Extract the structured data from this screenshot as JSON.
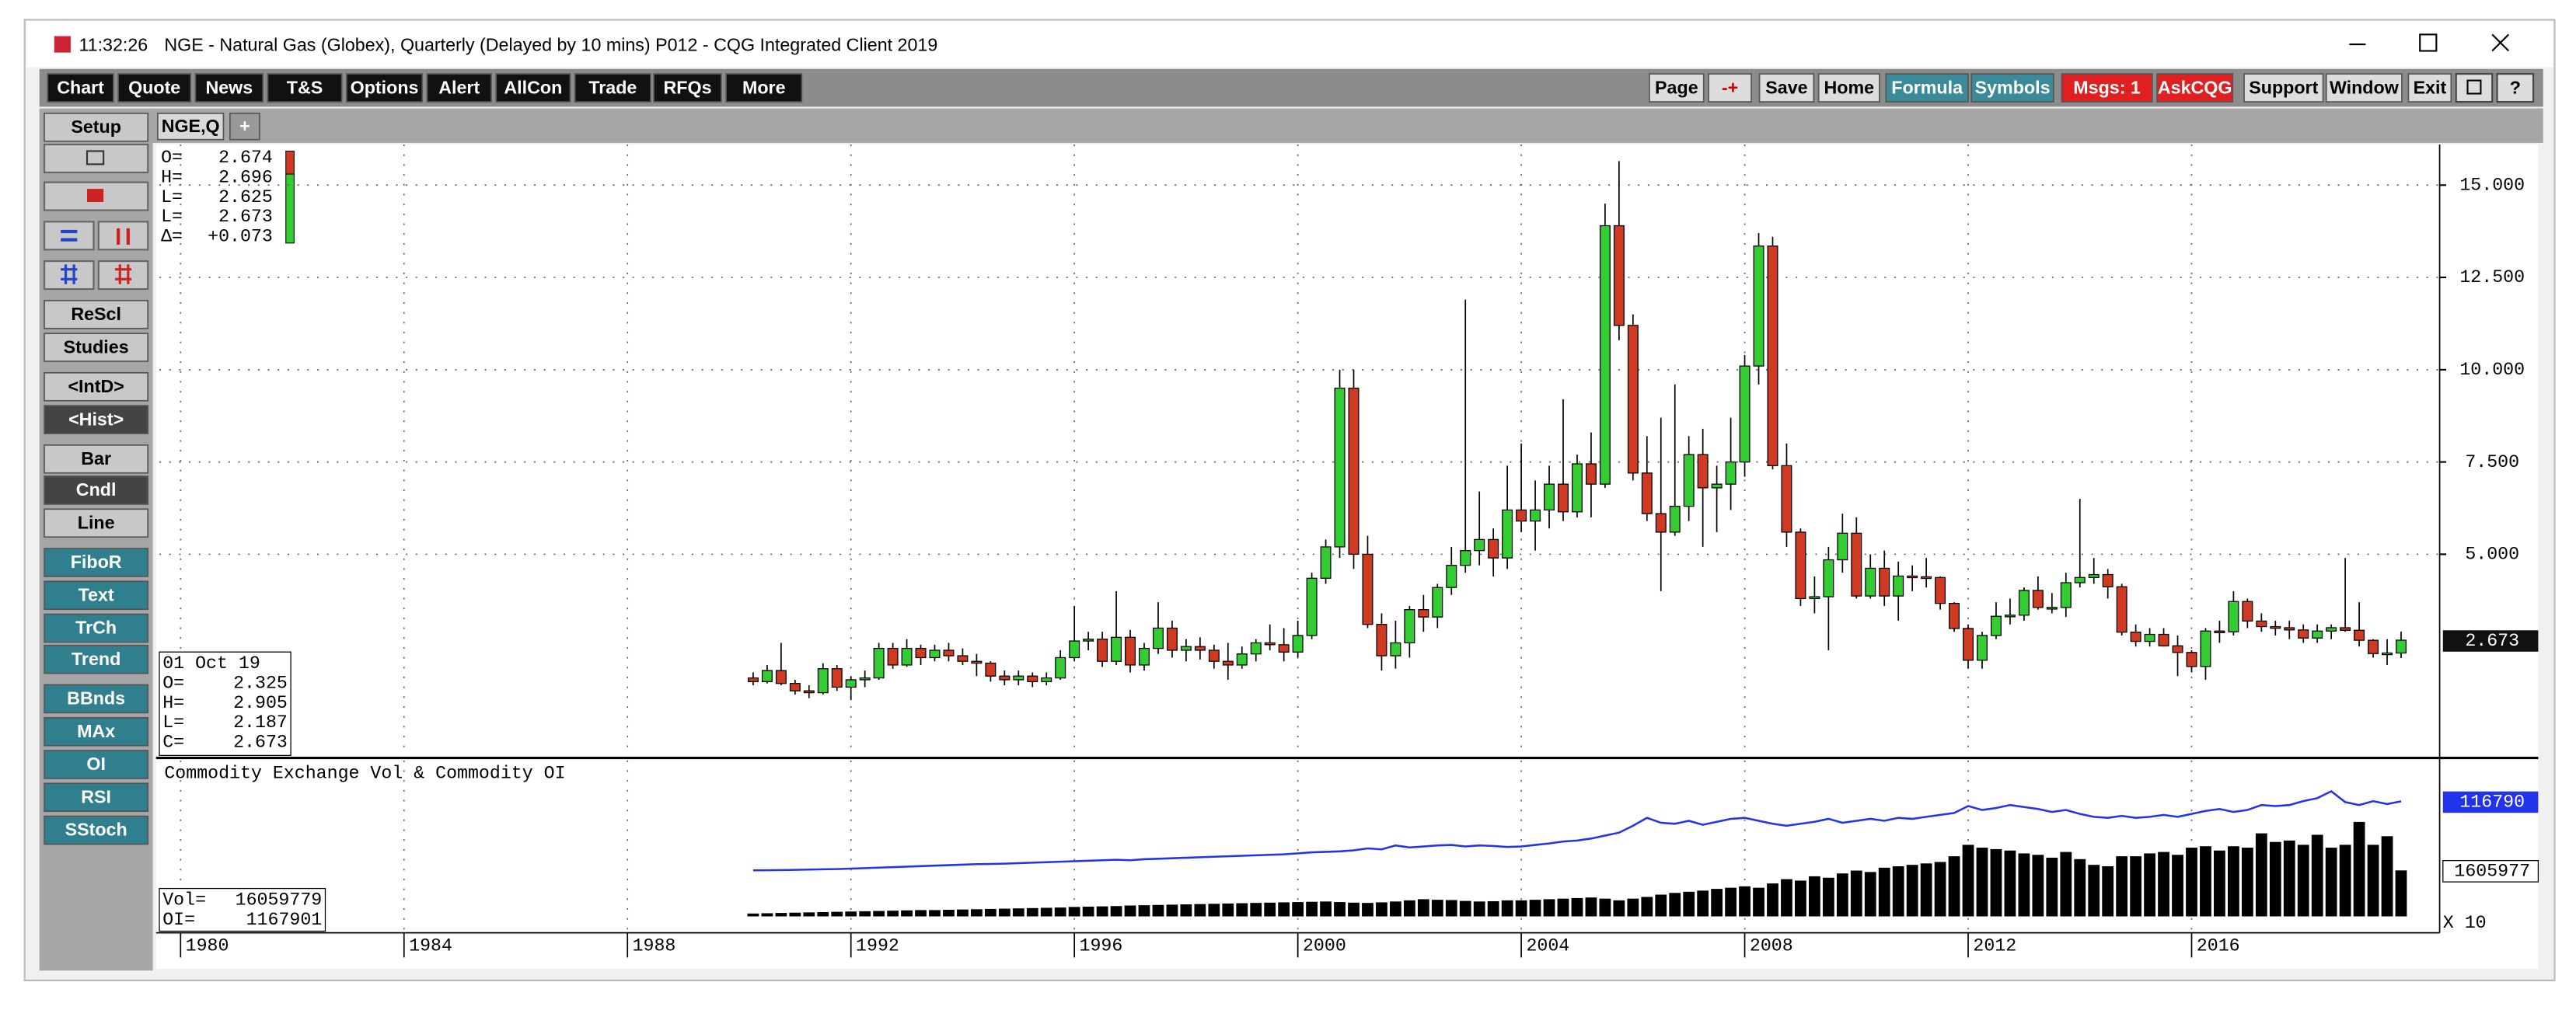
{
  "window": {
    "time": "11:32:26",
    "title": "NGE - Natural Gas (Globex), Quarterly (Delayed by 10 mins)   P012 - CQG Integrated Client 2019"
  },
  "toolbar_left": [
    "Chart",
    "Quote",
    "News",
    "T&S",
    "Options",
    "Alert",
    "AllCon",
    "Trade",
    "RFQs",
    "More"
  ],
  "toolbar_right": [
    "Page",
    "-+",
    "Save",
    "Home",
    "Formula",
    "Symbols",
    "Msgs: 1",
    "AskCQG",
    "Support",
    "Window",
    "Exit"
  ],
  "toolbar_right_styles": [
    "gray",
    "minus-plus",
    "gray",
    "gray",
    "teal",
    "teal",
    "red",
    "red",
    "gray",
    "gray",
    "gray"
  ],
  "sidebar": [
    {
      "text": "Setup",
      "style": "gray"
    },
    {
      "text": "ReScl",
      "style": "gray"
    },
    {
      "text": "Studies",
      "style": "gray"
    },
    {
      "text": "<IntD>",
      "style": "gray"
    },
    {
      "text": "<Hist>",
      "style": "dark"
    },
    {
      "text": "Bar",
      "style": "gray"
    },
    {
      "text": "Cndl",
      "style": "dark"
    },
    {
      "text": "Line",
      "style": "gray"
    },
    {
      "text": "FiboR",
      "style": "teal"
    },
    {
      "text": "Text",
      "style": "teal"
    },
    {
      "text": "TrCh",
      "style": "teal"
    },
    {
      "text": "Trend",
      "style": "teal"
    },
    {
      "text": "BBnds",
      "style": "teal"
    },
    {
      "text": "MAx",
      "style": "teal"
    },
    {
      "text": "OI",
      "style": "teal"
    },
    {
      "text": "RSI",
      "style": "teal"
    },
    {
      "text": "SStoch",
      "style": "teal"
    }
  ],
  "tabs": [
    "NGE,Q",
    "+"
  ],
  "quote_box": [
    {
      "label": "O=",
      "value": "2.674"
    },
    {
      "label": "H=",
      "value": "2.696"
    },
    {
      "label": "L=",
      "value": "2.625"
    },
    {
      "label": "L=",
      "value": "2.673"
    },
    {
      "label": "Δ=",
      "value": "+0.073"
    }
  ],
  "chart_data": {
    "type": "candlestick",
    "date_label": "01 Oct 19",
    "legend_labels": [
      "O=",
      "H=",
      "L=",
      "C="
    ],
    "up_color": "#33cc33",
    "down_color": "#d03a22",
    "grid": true,
    "x": [
      1990.25,
      1990.5,
      1990.75,
      1991,
      1991.25,
      1991.5,
      1991.75,
      1992,
      1992.25,
      1992.5,
      1992.75,
      1993,
      1993.25,
      1993.5,
      1993.75,
      1994,
      1994.25,
      1994.5,
      1994.75,
      1995,
      1995.25,
      1995.5,
      1995.75,
      1996,
      1996.25,
      1996.5,
      1996.75,
      1997,
      1997.25,
      1997.5,
      1997.75,
      1998,
      1998.25,
      1998.5,
      1998.75,
      1999,
      1999.25,
      1999.5,
      1999.75,
      2000,
      2000.25,
      2000.5,
      2000.75,
      2001,
      2001.25,
      2001.5,
      2001.75,
      2002,
      2002.25,
      2002.5,
      2002.75,
      2003,
      2003.25,
      2003.5,
      2003.75,
      2004,
      2004.25,
      2004.5,
      2004.75,
      2005,
      2005.25,
      2005.5,
      2005.75,
      2006,
      2006.25,
      2006.5,
      2006.75,
      2007,
      2007.25,
      2007.5,
      2007.75,
      2008,
      2008.25,
      2008.5,
      2008.75,
      2009,
      2009.25,
      2009.5,
      2009.75,
      2010,
      2010.25,
      2010.5,
      2010.75,
      2011,
      2011.25,
      2011.5,
      2011.75,
      2012,
      2012.25,
      2012.5,
      2012.75,
      2013,
      2013.25,
      2013.5,
      2013.75,
      2014,
      2014.25,
      2014.5,
      2014.75,
      2015,
      2015.25,
      2015.5,
      2015.75,
      2016,
      2016.25,
      2016.5,
      2016.75,
      2017,
      2017.25,
      2017.5,
      2017.75,
      2018,
      2018.25,
      2018.5,
      2018.75,
      2019,
      2019.25,
      2019.5,
      2019.75
    ],
    "open": [
      1.65,
      1.55,
      1.85,
      1.5,
      1.3,
      1.25,
      1.9,
      1.4,
      1.6,
      1.65,
      2.45,
      2.0,
      2.45,
      2.2,
      2.4,
      2.25,
      2.1,
      2.05,
      1.7,
      1.6,
      1.7,
      1.55,
      1.65,
      2.2,
      2.65,
      2.7,
      2.1,
      2.75,
      2.0,
      2.45,
      3.0,
      2.4,
      2.5,
      2.4,
      2.1,
      2.0,
      2.3,
      2.6,
      2.55,
      2.35,
      2.8,
      4.35,
      5.2,
      9.5,
      5.0,
      3.1,
      2.25,
      2.6,
      3.5,
      3.3,
      4.1,
      4.7,
      5.1,
      5.4,
      4.9,
      6.2,
      5.9,
      6.2,
      6.9,
      6.15,
      7.45,
      6.9,
      13.9,
      11.2,
      7.2,
      6.1,
      5.6,
      6.3,
      7.7,
      6.8,
      6.9,
      7.5,
      10.1,
      13.35,
      7.4,
      5.6,
      3.8,
      3.85,
      4.85,
      5.57,
      3.87,
      4.62,
      3.87,
      4.41,
      4.39,
      4.37,
      3.67,
      2.99,
      2.13,
      2.8,
      3.32,
      3.35,
      4.02,
      3.56,
      3.56,
      4.23,
      4.37,
      4.45,
      4.12,
      2.89,
      2.64,
      2.83,
      2.52,
      2.34,
      1.96,
      2.92,
      2.9,
      3.72,
      3.19,
      3.04,
      3.01,
      2.95,
      2.73,
      2.92,
      3.01,
      2.94,
      2.67,
      2.31,
      2.325
    ],
    "high": [
      1.8,
      2.0,
      2.6,
      1.6,
      1.45,
      2.05,
      2.0,
      1.7,
      1.85,
      2.6,
      2.6,
      2.7,
      2.55,
      2.55,
      2.6,
      2.45,
      2.3,
      2.1,
      1.85,
      1.85,
      1.8,
      1.8,
      2.4,
      3.6,
      2.9,
      2.9,
      4.0,
      2.95,
      2.6,
      3.7,
      3.2,
      2.7,
      2.75,
      2.55,
      2.6,
      2.5,
      2.7,
      3.1,
      3.0,
      3.2,
      4.5,
      5.4,
      10.0,
      10.0,
      5.5,
      3.4,
      3.2,
      3.6,
      3.9,
      4.2,
      5.2,
      11.9,
      6.7,
      5.7,
      7.4,
      8.0,
      7.0,
      7.4,
      9.2,
      7.7,
      8.3,
      14.5,
      15.65,
      11.5,
      8.2,
      8.7,
      9.6,
      8.2,
      8.4,
      7.4,
      8.7,
      10.4,
      13.7,
      13.6,
      8.0,
      5.7,
      4.4,
      5.2,
      6.1,
      6.0,
      5.0,
      5.1,
      4.8,
      4.7,
      4.9,
      4.4,
      3.7,
      3.1,
      2.9,
      3.7,
      3.8,
      4.1,
      4.4,
      3.95,
      4.5,
      6.5,
      4.9,
      4.6,
      4.2,
      3.1,
      3.0,
      3.0,
      2.8,
      2.4,
      3.0,
      3.2,
      4.0,
      3.8,
      3.4,
      3.2,
      3.2,
      3.1,
      3.1,
      3.1,
      4.9,
      3.7,
      2.7,
      2.7,
      2.905
    ],
    "low": [
      1.45,
      1.5,
      1.45,
      1.2,
      1.1,
      1.2,
      1.3,
      1.05,
      1.4,
      1.6,
      1.9,
      1.95,
      2.0,
      2.1,
      2.1,
      2.0,
      1.7,
      1.55,
      1.45,
      1.45,
      1.4,
      1.45,
      1.6,
      2.1,
      2.4,
      1.95,
      2.0,
      1.8,
      1.85,
      2.3,
      2.2,
      2.1,
      2.15,
      1.9,
      1.6,
      1.9,
      2.1,
      2.4,
      2.1,
      2.2,
      2.7,
      4.2,
      4.9,
      4.6,
      3.0,
      1.85,
      1.9,
      2.2,
      2.9,
      3.0,
      3.9,
      4.5,
      4.7,
      4.4,
      4.6,
      5.6,
      5.1,
      5.7,
      5.9,
      6.0,
      6.0,
      6.8,
      10.8,
      7.0,
      5.9,
      4.0,
      5.5,
      5.9,
      5.2,
      5.6,
      6.2,
      7.1,
      9.6,
      7.3,
      5.2,
      3.6,
      3.4,
      2.4,
      4.5,
      3.8,
      3.8,
      3.6,
      3.2,
      4.0,
      4.1,
      3.5,
      2.9,
      1.9,
      1.9,
      2.7,
      3.1,
      3.2,
      3.5,
      3.4,
      3.3,
      4.1,
      4.2,
      3.8,
      2.8,
      2.5,
      2.5,
      2.5,
      1.7,
      1.8,
      1.6,
      2.6,
      2.8,
      3.0,
      2.9,
      2.8,
      2.7,
      2.6,
      2.6,
      2.7,
      2.9,
      2.5,
      2.2,
      2.0,
      2.187
    ],
    "close": [
      1.55,
      1.85,
      1.5,
      1.3,
      1.25,
      1.9,
      1.4,
      1.6,
      1.65,
      2.45,
      2.0,
      2.45,
      2.2,
      2.4,
      2.25,
      2.1,
      2.05,
      1.7,
      1.6,
      1.7,
      1.55,
      1.65,
      2.2,
      2.65,
      2.7,
      2.1,
      2.75,
      2.0,
      2.45,
      3.0,
      2.4,
      2.5,
      2.4,
      2.1,
      2.0,
      2.3,
      2.6,
      2.55,
      2.35,
      2.8,
      4.35,
      5.2,
      9.5,
      5.0,
      3.1,
      2.25,
      2.6,
      3.5,
      3.3,
      4.1,
      4.7,
      5.1,
      5.4,
      4.9,
      6.2,
      5.9,
      6.2,
      6.9,
      6.15,
      7.45,
      6.9,
      13.9,
      11.2,
      7.2,
      6.1,
      5.6,
      6.3,
      7.7,
      6.8,
      6.9,
      7.5,
      10.1,
      13.35,
      7.4,
      5.6,
      3.8,
      3.85,
      4.85,
      5.57,
      3.87,
      4.62,
      3.87,
      4.41,
      4.39,
      4.37,
      3.67,
      2.99,
      2.13,
      2.8,
      3.32,
      3.35,
      4.02,
      3.56,
      3.56,
      4.23,
      4.37,
      4.45,
      4.12,
      2.89,
      2.64,
      2.83,
      2.52,
      2.34,
      1.96,
      2.92,
      2.9,
      3.72,
      3.19,
      3.04,
      3.01,
      2.95,
      2.73,
      2.92,
      3.01,
      2.94,
      2.67,
      2.31,
      2.325,
      2.673
    ],
    "xlim": [
      1979.62,
      2020.44
    ],
    "xticks": [
      1980,
      1984,
      1988,
      1992,
      1996,
      2000,
      2004,
      2008,
      2012,
      2016
    ],
    "ylim": [
      -0.45,
      16.1
    ],
    "yticks": [
      {
        "value": 5,
        "label": "5.000"
      },
      {
        "value": 7.5,
        "label": "7.500"
      },
      {
        "value": 10,
        "label": "10.000"
      },
      {
        "value": 12.5,
        "label": "12.500"
      },
      {
        "value": 15,
        "label": "15.000"
      }
    ]
  },
  "volume_chart": {
    "type": "bar",
    "title": "Commodity Exchange Vol & Commodity OI",
    "vol_label": "Vol=",
    "vol_text": "16059779",
    "oi_label": "OI=",
    "oi_text": "1167901",
    "multiplier": "X 10",
    "volume_color": "#000000",
    "oi_color": "#2233ee",
    "vol_ylim": [
      0,
      5334000
    ],
    "oi_ylim": [
      0,
      155000
    ],
    "volume": [
      100000,
      110000,
      120000,
      130000,
      140000,
      150000,
      160000,
      170000,
      180000,
      190000,
      200000,
      210000,
      220000,
      220000,
      230000,
      240000,
      250000,
      260000,
      270000,
      280000,
      290000,
      300000,
      310000,
      330000,
      340000,
      350000,
      360000,
      380000,
      390000,
      400000,
      410000,
      420000,
      430000,
      440000,
      450000,
      460000,
      470000,
      480000,
      490000,
      500000,
      510000,
      520000,
      500000,
      480000,
      470000,
      490000,
      520000,
      560000,
      600000,
      580000,
      570000,
      540000,
      520000,
      530000,
      560000,
      560000,
      580000,
      600000,
      620000,
      640000,
      660000,
      620000,
      560000,
      620000,
      680000,
      760000,
      820000,
      860000,
      900000,
      960000,
      1000000,
      1050000,
      1000000,
      1150000,
      1300000,
      1250000,
      1400000,
      1350000,
      1500000,
      1600000,
      1550000,
      1700000,
      1750000,
      1800000,
      1850000,
      1900000,
      2100000,
      2500000,
      2400000,
      2350000,
      2300000,
      2200000,
      2150000,
      2050000,
      2250000,
      2000000,
      1800000,
      1750000,
      2100000,
      2100000,
      2200000,
      2250000,
      2150000,
      2400000,
      2450000,
      2300000,
      2450000,
      2400000,
      2900000,
      2600000,
      2650000,
      2500000,
      2850000,
      2400000,
      2500000,
      3300000,
      2500000,
      2800000,
      1605977
    ],
    "oi": [
      46700,
      46800,
      47000,
      47200,
      47500,
      47800,
      48000,
      48500,
      49000,
      49500,
      50000,
      50500,
      51000,
      51500,
      52000,
      52500,
      53000,
      53200,
      53500,
      54000,
      54500,
      55000,
      55500,
      56000,
      56500,
      57000,
      57500,
      57000,
      58000,
      58500,
      59000,
      59500,
      60000,
      60500,
      61000,
      61500,
      62000,
      62500,
      63000,
      64000,
      65000,
      65500,
      66000,
      67000,
      69000,
      68000,
      72000,
      70000,
      71000,
      72000,
      72500,
      71000,
      72000,
      71500,
      70500,
      71000,
      72500,
      74000,
      76000,
      77000,
      79000,
      82000,
      85000,
      92000,
      100000,
      95000,
      94000,
      97000,
      93000,
      96000,
      99000,
      100000,
      97000,
      94000,
      92000,
      94000,
      96000,
      99000,
      95000,
      97000,
      99000,
      97000,
      100000,
      99000,
      101000,
      103000,
      105000,
      112000,
      108000,
      110000,
      113000,
      111000,
      109000,
      106000,
      108000,
      104000,
      101000,
      100000,
      102000,
      100000,
      101000,
      103000,
      101000,
      104000,
      107000,
      109000,
      106000,
      108000,
      113000,
      112000,
      113000,
      117000,
      120000,
      127000,
      116000,
      113000,
      117000,
      114000,
      116790
    ]
  }
}
